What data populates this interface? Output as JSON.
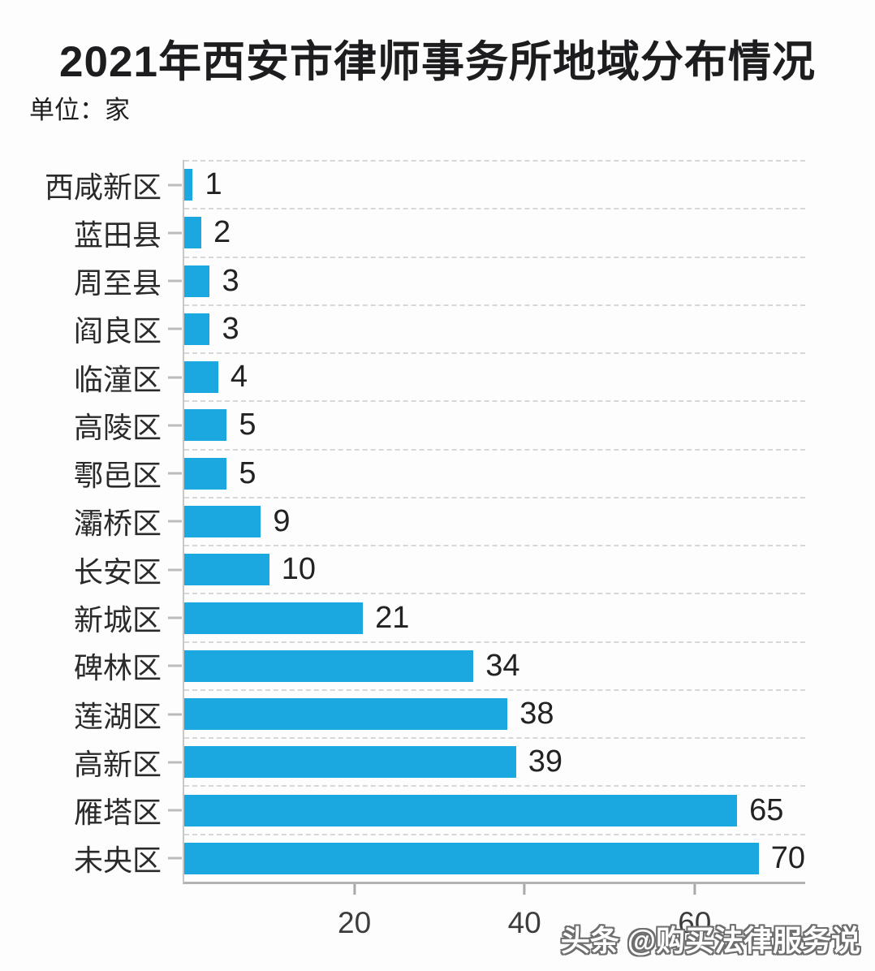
{
  "page": {
    "title": "2021年西安市律师事务所地域分布情况",
    "unit_label": "单位：家",
    "watermark": "头条 @购买法律服务说"
  },
  "chart_data": {
    "type": "bar",
    "orientation": "horizontal",
    "title": "2021年西安市律师事务所地域分布情况",
    "unit": "家",
    "categories": [
      "西咸新区",
      "蓝田县",
      "周至县",
      "阎良区",
      "临潼区",
      "高陵区",
      "鄠邑区",
      "灞桥区",
      "长安区",
      "新城区",
      "碑林区",
      "莲湖区",
      "高新区",
      "雁塔区",
      "未央区"
    ],
    "values": [
      1,
      2,
      3,
      3,
      4,
      5,
      5,
      9,
      10,
      21,
      34,
      38,
      39,
      65,
      70
    ],
    "xlabel": "",
    "ylabel": "",
    "xticks": [
      20,
      40,
      60
    ],
    "xlim": [
      0,
      73
    ],
    "grid": "dashed-horizontal-between-rows",
    "legend": "none",
    "value_labels": true,
    "bar_color": "#1ba7e0",
    "axis_color": "#b3b3b3",
    "grid_color": "#d7d7d7",
    "text_color": "#1d1d1f"
  }
}
